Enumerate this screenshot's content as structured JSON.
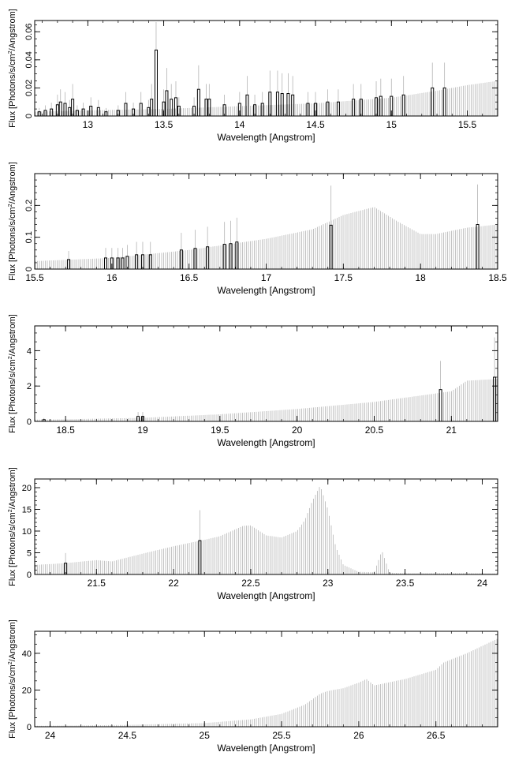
{
  "colors": {
    "errorbar": "#b4b4b4",
    "data": "#000000",
    "frame": "#000000",
    "background": "#ffffff"
  },
  "chart_data": [
    {
      "type": "line",
      "xlabel": "Wavelength [Angstrom]",
      "ylabel_parts": [
        "Flux [Photons/s/cm",
        "2",
        "/Angstrom]"
      ],
      "xlim": [
        12.65,
        15.7
      ],
      "ylim": [
        0,
        0.068
      ],
      "xticks": [
        13,
        13.5,
        14,
        14.5,
        15,
        15.5
      ],
      "xtick_labels": [
        "13",
        "13.5",
        "14",
        "14.5",
        "15",
        "15.5"
      ],
      "yticks": [
        0,
        0.02,
        0.04,
        0.06
      ],
      "ytick_labels": [
        "0",
        "0.02",
        "0.04",
        "0.06"
      ],
      "xminor": 0.1,
      "yminor": 0.005,
      "ylabel_rotated_ticks": true,
      "series": [
        {
          "role": "continuum_errorbars",
          "x": [
            12.65,
            13.0,
            13.5,
            14.0,
            14.5,
            15.0,
            15.3,
            15.5,
            15.7
          ],
          "y": [
            0.003,
            0.004,
            0.005,
            0.007,
            0.009,
            0.013,
            0.018,
            0.022,
            0.025
          ]
        },
        {
          "role": "observed_bins",
          "x": [
            12.68,
            12.72,
            12.76,
            12.8,
            12.82,
            12.85,
            12.88,
            12.9,
            12.93,
            12.97,
            13.02,
            13.07,
            13.12,
            13.2,
            13.25,
            13.3,
            13.35,
            13.4,
            13.42,
            13.45,
            13.5,
            13.52,
            13.55,
            13.58,
            13.6,
            13.7,
            13.73,
            13.78,
            13.8,
            13.9,
            14.0,
            14.05,
            14.1,
            14.15,
            14.2,
            14.25,
            14.28,
            14.32,
            14.35,
            14.45,
            14.5,
            14.58,
            14.65,
            14.75,
            14.8,
            14.9,
            14.93,
            15.0,
            15.08,
            15.27,
            15.35
          ],
          "y": [
            0.003,
            0.004,
            0.005,
            0.008,
            0.01,
            0.009,
            0.006,
            0.012,
            0.004,
            0.005,
            0.007,
            0.006,
            0.003,
            0.004,
            0.009,
            0.005,
            0.009,
            0.006,
            0.012,
            0.047,
            0.01,
            0.018,
            0.012,
            0.013,
            0.007,
            0.007,
            0.019,
            0.012,
            0.012,
            0.008,
            0.009,
            0.015,
            0.008,
            0.009,
            0.017,
            0.017,
            0.016,
            0.016,
            0.015,
            0.009,
            0.009,
            0.01,
            0.01,
            0.012,
            0.012,
            0.013,
            0.014,
            0.014,
            0.015,
            0.02,
            0.02
          ]
        }
      ]
    },
    {
      "type": "line",
      "xlabel": "Wavelength [Angstrom]",
      "ylabel_parts": [
        "Flux [Photons/s/cm",
        "2",
        "/Angstrom]"
      ],
      "xlim": [
        15.5,
        18.5
      ],
      "ylim": [
        0,
        0.3
      ],
      "xticks": [
        15.5,
        16,
        16.5,
        17,
        17.5,
        18,
        18.5
      ],
      "xtick_labels": [
        "15.5",
        "16",
        "16.5",
        "17",
        "17.5",
        "18",
        "18.5"
      ],
      "yticks": [
        0,
        0.1,
        0.2
      ],
      "ytick_labels": [
        "0",
        "0.1",
        "0.2"
      ],
      "xminor": 0.1,
      "yminor": 0.02,
      "ylabel_rotated_ticks": true,
      "series": [
        {
          "role": "continuum_errorbars",
          "x": [
            15.5,
            16.0,
            16.5,
            17.0,
            17.3,
            17.5,
            17.7,
            17.85,
            18.0,
            18.1,
            18.3,
            18.5
          ],
          "y": [
            0.025,
            0.035,
            0.06,
            0.095,
            0.125,
            0.17,
            0.195,
            0.15,
            0.11,
            0.11,
            0.13,
            0.14
          ]
        },
        {
          "role": "observed_bins",
          "x": [
            15.72,
            15.96,
            16.0,
            16.04,
            16.07,
            16.1,
            16.16,
            16.2,
            16.25,
            16.45,
            16.54,
            16.62,
            16.73,
            16.77,
            16.81,
            17.42,
            18.37
          ],
          "y": [
            0.03,
            0.035,
            0.035,
            0.035,
            0.035,
            0.04,
            0.045,
            0.045,
            0.045,
            0.06,
            0.065,
            0.07,
            0.078,
            0.08,
            0.085,
            0.138,
            0.14
          ]
        }
      ]
    },
    {
      "type": "line",
      "xlabel": "Wavelength [Angstrom]",
      "ylabel_parts": [
        "Flux [Photons/s/cm",
        "2",
        "/Angstrom]"
      ],
      "xlim": [
        18.3,
        21.3
      ],
      "ylim": [
        0,
        5.4
      ],
      "xticks": [
        18.5,
        19,
        19.5,
        20,
        20.5,
        21
      ],
      "xtick_labels": [
        "18.5",
        "19",
        "19.5",
        "20",
        "20.5",
        "21"
      ],
      "yticks": [
        0,
        2,
        4
      ],
      "ytick_labels": [
        "0",
        "2",
        "4"
      ],
      "xminor": 0.1,
      "yminor": 0.5,
      "ylabel_rotated_ticks": false,
      "series": [
        {
          "role": "continuum_errorbars",
          "x": [
            18.3,
            18.5,
            19.0,
            19.5,
            20.0,
            20.5,
            21.0,
            21.1,
            21.3
          ],
          "y": [
            0.1,
            0.12,
            0.2,
            0.4,
            0.7,
            1.1,
            1.7,
            2.3,
            2.4
          ]
        },
        {
          "role": "observed_bins",
          "x": [
            18.36,
            18.97,
            19.0,
            20.93,
            21.28
          ],
          "y": [
            0.1,
            0.28,
            0.28,
            1.8,
            2.5
          ]
        }
      ]
    },
    {
      "type": "line",
      "xlabel": "Wavelength [Angstrom]",
      "ylabel_parts": [
        "Flux [Photons/s/cm",
        "2",
        "/Angstrom]"
      ],
      "xlim": [
        21.1,
        24.1
      ],
      "ylim": [
        0,
        22
      ],
      "xticks": [
        21.5,
        22,
        22.5,
        23,
        23.5,
        24
      ],
      "xtick_labels": [
        "21.5",
        "22",
        "22.5",
        "23",
        "23.5",
        "24"
      ],
      "yticks": [
        0,
        5,
        10,
        15,
        20
      ],
      "ytick_labels": [
        "0",
        "5",
        "10",
        "15",
        "20"
      ],
      "xminor": 0.1,
      "yminor": 1,
      "ylabel_rotated_ticks": false,
      "series": [
        {
          "role": "continuum_errorbars",
          "x": [
            21.1,
            21.3,
            21.5,
            21.6,
            21.8,
            22.0,
            22.2,
            22.3,
            22.45,
            22.5,
            22.6,
            22.7,
            22.8,
            22.85,
            22.9,
            22.95,
            23.0,
            23.05,
            23.1,
            23.2,
            23.3,
            23.35,
            23.4,
            23.5,
            24.0,
            24.1
          ],
          "y": [
            2.2,
            2.6,
            3.3,
            3.0,
            4.8,
            6.5,
            8.0,
            8.8,
            11.2,
            11.3,
            9.0,
            8.5,
            10.0,
            12.5,
            17.0,
            20.5,
            15.0,
            6.5,
            2.2,
            0.6,
            0.5,
            5.5,
            0.4,
            0.3,
            0.3,
            0.3
          ]
        },
        {
          "role": "observed_bins",
          "x": [
            21.3,
            22.17
          ],
          "y": [
            2.6,
            7.8
          ]
        }
      ]
    },
    {
      "type": "line",
      "xlabel": "Wavelength [Angstrom]",
      "ylabel_parts": [
        "Flux [Photons/s/cm",
        "2",
        "/Angstrom]"
      ],
      "xlim": [
        23.9,
        26.9
      ],
      "ylim": [
        0,
        52
      ],
      "xticks": [
        24,
        24.5,
        25,
        25.5,
        26,
        26.5
      ],
      "xtick_labels": [
        "24",
        "24.5",
        "25",
        "25.5",
        "26",
        "26.5"
      ],
      "yticks": [
        0,
        20,
        40
      ],
      "ytick_labels": [
        "0",
        "20",
        "40"
      ],
      "xminor": 0.1,
      "yminor": 5,
      "ylabel_rotated_ticks": false,
      "series": [
        {
          "role": "continuum_errorbars",
          "x": [
            23.9,
            24.5,
            25.0,
            25.3,
            25.5,
            25.65,
            25.75,
            25.8,
            25.9,
            26.0,
            26.05,
            26.1,
            26.3,
            26.5,
            26.55,
            26.7,
            26.9
          ],
          "y": [
            0.5,
            1.0,
            2.0,
            4.0,
            7.0,
            12.0,
            18.0,
            19.5,
            21.0,
            24.0,
            26.0,
            22.5,
            26.0,
            31.0,
            35.0,
            40.0,
            48.0
          ]
        }
      ]
    }
  ]
}
